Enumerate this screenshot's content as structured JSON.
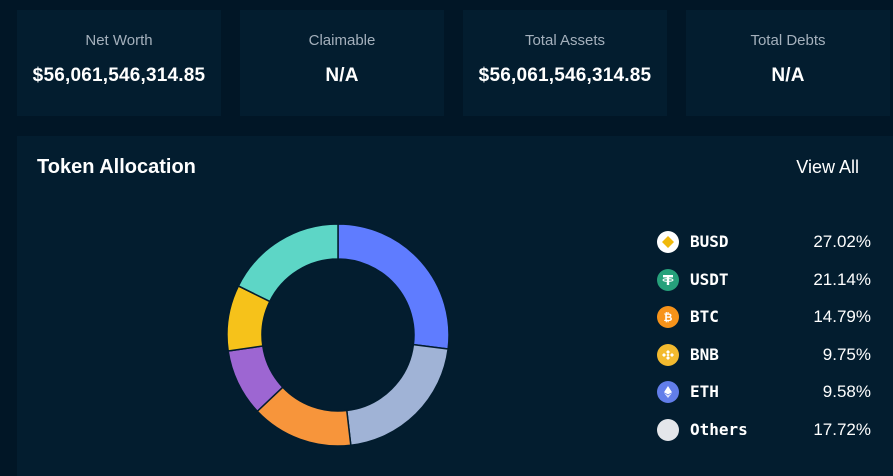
{
  "stats": [
    {
      "label": "Net Worth",
      "value": "$56,061,546,314.85"
    },
    {
      "label": "Claimable",
      "value": "N/A"
    },
    {
      "label": "Total Assets",
      "value": "$56,061,546,314.85"
    },
    {
      "label": "Total Debts",
      "value": "N/A"
    }
  ],
  "allocation": {
    "title": "Token Allocation",
    "view_all_label": "View All",
    "tokens": [
      {
        "symbol": "BUSD",
        "percent_label": "27.02%",
        "percent": 27.02,
        "color": "#5f7cff",
        "icon": "busd-icon"
      },
      {
        "symbol": "USDT",
        "percent_label": "21.14%",
        "percent": 21.14,
        "color": "#a0b3d6",
        "icon": "usdt-icon"
      },
      {
        "symbol": "BTC",
        "percent_label": "14.79%",
        "percent": 14.79,
        "color": "#f7953b",
        "icon": "btc-icon"
      },
      {
        "symbol": "BNB",
        "percent_label": "9.75%",
        "percent": 9.75,
        "color": "#9d66d2",
        "icon": "bnb-icon"
      },
      {
        "symbol": "ETH",
        "percent_label": "9.58%",
        "percent": 9.58,
        "color": "#f6c21a",
        "icon": "eth-icon"
      },
      {
        "symbol": "Others",
        "percent_label": "17.72%",
        "percent": 17.72,
        "color": "#5dd6c6",
        "icon": "others-icon"
      }
    ]
  }
}
